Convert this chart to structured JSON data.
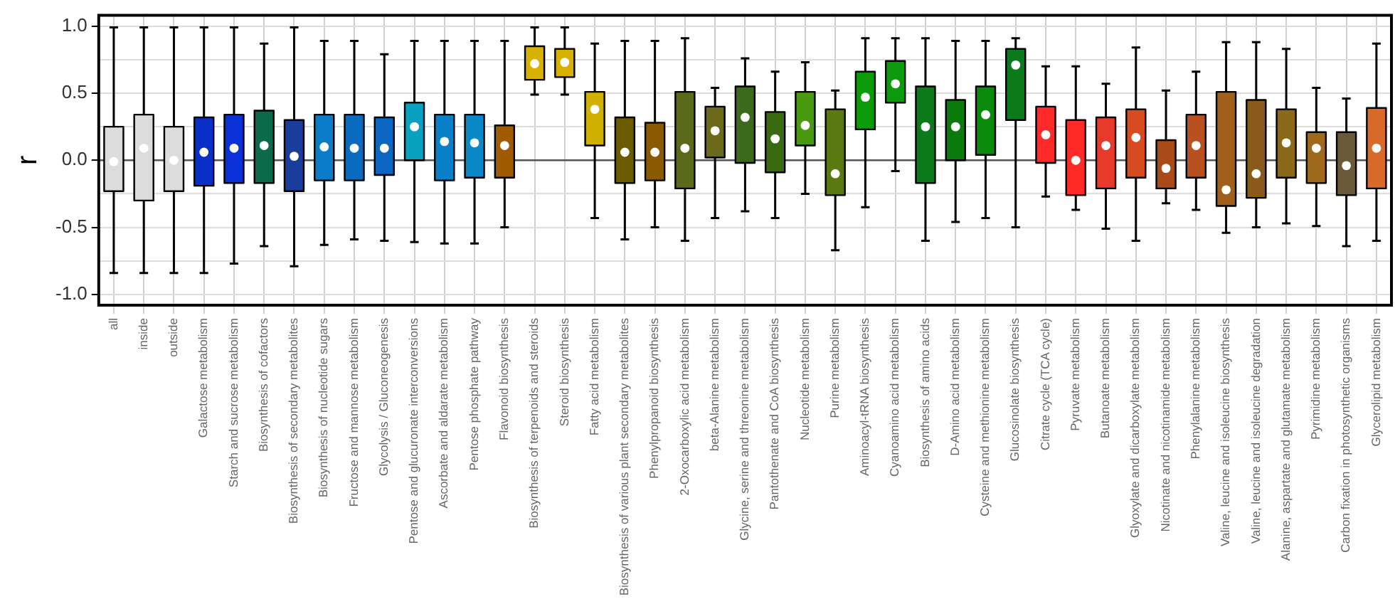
{
  "chart_data": {
    "type": "box",
    "ylabel": "r",
    "categories": [
      "all",
      "inside",
      "outside",
      "Galactose metabolism",
      "Starch and sucrose metabolism",
      "Biosynthesis of cofactors",
      "Biosynthesis of secondary metabolites",
      "Biosynthesis of nucleotide sugars",
      "Fructose and mannose metabolism",
      "Glycolysis / Gluconeogenesis",
      "Pentose and glucuronate interconversions",
      "Ascorbate and aldarate metabolism",
      "Pentose phosphate pathway",
      "Flavonoid biosynthesis",
      "Biosynthesis of terpenoids and steroids",
      "Steroid biosynthesis",
      "Fatty acid metabolism",
      "Biosynthesis of various plant secondary metabolites",
      "Phenylpropanoid biosynthesis",
      "2-Oxocarboxylic acid metabolism",
      "beta-Alanine metabolism",
      "Glycine, serine and threonine metabolism",
      "Pantothenate and CoA biosynthesis",
      "Nucleotide metabolism",
      "Purine metabolism",
      "Aminoacyl-tRNA biosynthesis",
      "Cyanoamino acid metabolism",
      "Biosynthesis of amino acids",
      "D-Amino acid metabolism",
      "Cysteine and methionine metabolism",
      "Glucosinolate biosynthesis",
      "Citrate cycle (TCA cycle)",
      "Pyruvate metabolism",
      "Butanoate metabolism",
      "Glyoxylate and dicarboxylate metabolism",
      "Nicotinate and nicotinamide metabolism",
      "Phenylalanine metabolism",
      "Valine, leucine and isoleucine biosynthesis",
      "Valine, leucine and isoleucine degradation",
      "Alanine, aspartate and glutamate metabolism",
      "Pyrimidine metabolism",
      "Carbon fixation in photosynthetic organisms",
      "Glycerolipid metabolism"
    ],
    "colors": [
      "#dcdcdc",
      "#dcdcdc",
      "#dcdcdc",
      "#0a2fc8",
      "#0a30d8",
      "#0a6a4a",
      "#1a3c9a",
      "#0a7cc8",
      "#0a6cc0",
      "#0a66c0",
      "#0aa0c0",
      "#0a80c8",
      "#0a88c8",
      "#a05a00",
      "#d8b000",
      "#d8b000",
      "#d0b000",
      "#6a5a00",
      "#8a5a00",
      "#5a6a1a",
      "#6a6a1a",
      "#3a6a1a",
      "#3a6a10",
      "#4a9a10",
      "#5a7a10",
      "#0a9a0a",
      "#0a9a0a",
      "#0a7a1a",
      "#0a7a0a",
      "#0a8a0a",
      "#0a7a1a",
      "#ff2a2a",
      "#ff2a2a",
      "#e83a2a",
      "#d84a20",
      "#a84a1a",
      "#b85020",
      "#a0601a",
      "#8a5a1a",
      "#8a6a1a",
      "#a0681a",
      "#6a5a3a",
      "#d86a2a"
    ],
    "boxes": [
      {
        "low": -0.84,
        "q1": -0.23,
        "median": -0.01,
        "q3": 0.25,
        "high": 0.99
      },
      {
        "low": -0.84,
        "q1": -0.3,
        "median": 0.09,
        "q3": 0.34,
        "high": 0.99
      },
      {
        "low": -0.84,
        "q1": -0.23,
        "median": 0.0,
        "q3": 0.25,
        "high": 0.99
      },
      {
        "low": -0.84,
        "q1": -0.19,
        "median": 0.06,
        "q3": 0.32,
        "high": 0.99
      },
      {
        "low": -0.77,
        "q1": -0.17,
        "median": 0.09,
        "q3": 0.34,
        "high": 0.99
      },
      {
        "low": -0.64,
        "q1": -0.17,
        "median": 0.11,
        "q3": 0.37,
        "high": 0.87
      },
      {
        "low": -0.79,
        "q1": -0.23,
        "median": 0.03,
        "q3": 0.3,
        "high": 0.99
      },
      {
        "low": -0.63,
        "q1": -0.15,
        "median": 0.1,
        "q3": 0.34,
        "high": 0.89
      },
      {
        "low": -0.59,
        "q1": -0.15,
        "median": 0.09,
        "q3": 0.34,
        "high": 0.89
      },
      {
        "low": -0.6,
        "q1": -0.11,
        "median": 0.09,
        "q3": 0.32,
        "high": 0.79
      },
      {
        "low": -0.61,
        "q1": 0.0,
        "median": 0.25,
        "q3": 0.43,
        "high": 0.89
      },
      {
        "low": -0.62,
        "q1": -0.15,
        "median": 0.14,
        "q3": 0.34,
        "high": 0.89
      },
      {
        "low": -0.62,
        "q1": -0.13,
        "median": 0.13,
        "q3": 0.34,
        "high": 0.89
      },
      {
        "low": -0.5,
        "q1": -0.13,
        "median": 0.11,
        "q3": 0.26,
        "high": 0.89
      },
      {
        "low": 0.49,
        "q1": 0.6,
        "median": 0.72,
        "q3": 0.85,
        "high": 0.99
      },
      {
        "low": 0.49,
        "q1": 0.62,
        "median": 0.73,
        "q3": 0.83,
        "high": 0.99
      },
      {
        "low": -0.43,
        "q1": 0.11,
        "median": 0.38,
        "q3": 0.51,
        "high": 0.87
      },
      {
        "low": -0.59,
        "q1": -0.17,
        "median": 0.06,
        "q3": 0.32,
        "high": 0.89
      },
      {
        "low": -0.5,
        "q1": -0.15,
        "median": 0.06,
        "q3": 0.28,
        "high": 0.89
      },
      {
        "low": -0.6,
        "q1": -0.21,
        "median": 0.09,
        "q3": 0.51,
        "high": 0.91
      },
      {
        "low": -0.43,
        "q1": 0.02,
        "median": 0.22,
        "q3": 0.4,
        "high": 0.54
      },
      {
        "low": -0.38,
        "q1": -0.02,
        "median": 0.32,
        "q3": 0.55,
        "high": 0.76
      },
      {
        "low": -0.43,
        "q1": -0.09,
        "median": 0.16,
        "q3": 0.36,
        "high": 0.66
      },
      {
        "low": -0.25,
        "q1": 0.11,
        "median": 0.26,
        "q3": 0.51,
        "high": 0.73
      },
      {
        "low": -0.67,
        "q1": -0.26,
        "median": -0.1,
        "q3": 0.38,
        "high": 0.52
      },
      {
        "low": -0.35,
        "q1": 0.23,
        "median": 0.47,
        "q3": 0.66,
        "high": 0.91
      },
      {
        "low": -0.08,
        "q1": 0.43,
        "median": 0.57,
        "q3": 0.74,
        "high": 0.91
      },
      {
        "low": -0.6,
        "q1": -0.17,
        "median": 0.25,
        "q3": 0.55,
        "high": 0.91
      },
      {
        "low": -0.46,
        "q1": 0.0,
        "median": 0.25,
        "q3": 0.45,
        "high": 0.89
      },
      {
        "low": -0.43,
        "q1": 0.04,
        "median": 0.34,
        "q3": 0.55,
        "high": 0.89
      },
      {
        "low": -0.5,
        "q1": 0.3,
        "median": 0.71,
        "q3": 0.83,
        "high": 0.91
      },
      {
        "low": -0.27,
        "q1": -0.02,
        "median": 0.19,
        "q3": 0.4,
        "high": 0.7
      },
      {
        "low": -0.37,
        "q1": -0.26,
        "median": 0.0,
        "q3": 0.3,
        "high": 0.7
      },
      {
        "low": -0.51,
        "q1": -0.21,
        "median": 0.11,
        "q3": 0.32,
        "high": 0.57
      },
      {
        "low": -0.6,
        "q1": -0.13,
        "median": 0.17,
        "q3": 0.38,
        "high": 0.84
      },
      {
        "low": -0.32,
        "q1": -0.21,
        "median": -0.06,
        "q3": 0.15,
        "high": 0.52
      },
      {
        "low": -0.37,
        "q1": -0.13,
        "median": 0.11,
        "q3": 0.34,
        "high": 0.66
      },
      {
        "low": -0.54,
        "q1": -0.34,
        "median": -0.22,
        "q3": 0.51,
        "high": 0.88
      },
      {
        "low": -0.5,
        "q1": -0.28,
        "median": -0.1,
        "q3": 0.45,
        "high": 0.88
      },
      {
        "low": -0.47,
        "q1": -0.13,
        "median": 0.13,
        "q3": 0.38,
        "high": 0.83
      },
      {
        "low": -0.49,
        "q1": -0.17,
        "median": 0.09,
        "q3": 0.21,
        "high": 0.54
      },
      {
        "low": -0.64,
        "q1": -0.26,
        "median": -0.04,
        "q3": 0.21,
        "high": 0.46
      },
      {
        "low": -0.6,
        "q1": -0.21,
        "median": 0.09,
        "q3": 0.39,
        "high": 0.87
      }
    ],
    "ylim": [
      -1.08,
      1.08
    ],
    "yticks": [
      {
        "value": -1,
        "label": "-1.0"
      },
      {
        "value": -0.75,
        "label": null
      },
      {
        "value": -0.5,
        "label": "-0.5"
      },
      {
        "value": -0.25,
        "label": null
      },
      {
        "value": 0,
        "label": "0.0"
      },
      {
        "value": 0.25,
        "label": null
      },
      {
        "value": 0.5,
        "label": "0.5"
      },
      {
        "value": 0.75,
        "label": null
      },
      {
        "value": 1,
        "label": "1.0"
      }
    ],
    "ref_lines": [
      {
        "axis": "y",
        "value": 0,
        "color": "#555555"
      }
    ],
    "grid": true
  }
}
